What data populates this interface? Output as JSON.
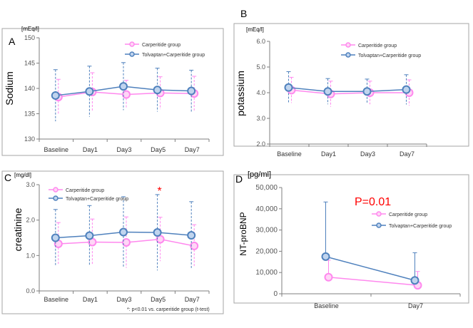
{
  "colors": {
    "carperitide": "#ff88ee",
    "tolvaptan": "#4f81bd",
    "tolvaptan_fill": "#c0d4ee",
    "carperitide_fill": "#ffd6f6",
    "axis": "#7f7f7f",
    "border": "#a6a6a6",
    "star": "#ff0000",
    "pvalue": "#ff0000"
  },
  "chart_data": [
    {
      "id": "A",
      "type": "line",
      "panel_label": "A",
      "ylabel": "Sodium",
      "unit": "[mEq/l]",
      "categories": [
        "Baseline",
        "Day1",
        "Day3",
        "Day5",
        "Day7"
      ],
      "ylim": [
        130,
        150
      ],
      "yticks": [
        "130",
        "135",
        "140",
        "145",
        "150"
      ],
      "legend": [
        "Carperitide group",
        "Tolvaptan+Carperitide group"
      ],
      "series": [
        {
          "name": "Carperitide group",
          "values": [
            138.3,
            139.3,
            138.8,
            139.1,
            139.0
          ],
          "err": [
            3.5,
            3.8,
            2.8,
            3.2,
            3.4
          ]
        },
        {
          "name": "Tolvaptan+Carperitide group",
          "values": [
            138.6,
            139.4,
            140.4,
            139.7,
            139.5
          ],
          "err": [
            5.1,
            5.0,
            4.7,
            4.3,
            4.1
          ]
        }
      ]
    },
    {
      "id": "B",
      "type": "line",
      "panel_label": "B",
      "ylabel": "potassium",
      "unit": "[mEq/l]",
      "categories": [
        "Baseline",
        "Day1",
        "Day3",
        "Day7"
      ],
      "ylim": [
        2.0,
        6.0
      ],
      "yticks": [
        "2.0",
        "3.0",
        "4.0",
        "5.0",
        "6.0"
      ],
      "legend": [
        "Carperitide group",
        "Tolvaptan+Carperitide group"
      ],
      "series": [
        {
          "name": "Carperitide group",
          "values": [
            4.1,
            3.95,
            4.0,
            4.0
          ],
          "err": [
            0.5,
            0.5,
            0.45,
            0.5
          ]
        },
        {
          "name": "Tolvaptan+Carperitide group",
          "values": [
            4.2,
            4.05,
            4.05,
            4.12
          ],
          "err": [
            0.62,
            0.5,
            0.48,
            0.58
          ]
        }
      ]
    },
    {
      "id": "C",
      "type": "line",
      "panel_label": "C",
      "ylabel": "creatinine",
      "unit": "[mg/dl]",
      "categories": [
        "Baseline",
        "Day1",
        "Day3",
        "Day5",
        "Day7"
      ],
      "ylim": [
        0.0,
        3.0
      ],
      "yticks": [
        "0.0",
        "1.0",
        "2.0",
        "3.0"
      ],
      "legend": [
        "Carperitide group",
        "Tolvaptan+Carperitide group"
      ],
      "series": [
        {
          "name": "Carperitide group",
          "values": [
            1.33,
            1.38,
            1.37,
            1.46,
            1.27
          ],
          "err": [
            0.6,
            0.65,
            0.72,
            0.62,
            0.6
          ]
        },
        {
          "name": "Tolvaptan+Carperitide group",
          "values": [
            1.5,
            1.56,
            1.66,
            1.65,
            1.57
          ],
          "err": [
            0.8,
            0.85,
            1.0,
            1.07,
            0.95
          ]
        }
      ],
      "significance_marker": "*",
      "significance_index": 3,
      "footnote": "*: p<0.01 vs. carperitide group (t-test)"
    },
    {
      "id": "D",
      "type": "line",
      "panel_label": "D",
      "ylabel": "NT-proBNP",
      "unit": "[pg/ml]",
      "categories": [
        "Baseline",
        "Day7"
      ],
      "ylim": [
        0,
        50000
      ],
      "yticks": [
        "0",
        "10,000",
        "20,000",
        "30,000",
        "40,000",
        "50,000"
      ],
      "legend": [
        "Carperitide group",
        "Tolvaptan+Carperitide group"
      ],
      "series": [
        {
          "name": "Carperitide group",
          "values": [
            7800,
            4000
          ],
          "err": [
            8000,
            6500
          ]
        },
        {
          "name": "Tolvaptan+Carperitide group",
          "values": [
            17500,
            6300
          ],
          "err": [
            25700,
            13000
          ]
        }
      ],
      "pvalue_label": "P=0.01"
    }
  ]
}
